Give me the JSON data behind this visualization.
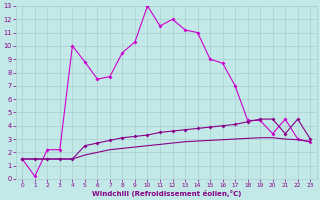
{
  "xlabel": "Windchill (Refroidissement éolien,°C)",
  "xlim": [
    -0.5,
    23.5
  ],
  "ylim": [
    0,
    13
  ],
  "xticks": [
    0,
    1,
    2,
    3,
    4,
    5,
    6,
    7,
    8,
    9,
    10,
    11,
    12,
    13,
    14,
    15,
    16,
    17,
    18,
    19,
    20,
    21,
    22,
    23
  ],
  "yticks": [
    0,
    1,
    2,
    3,
    4,
    5,
    6,
    7,
    8,
    9,
    10,
    11,
    12,
    13
  ],
  "bg_color": "#c2e8e8",
  "grid_color": "#aacccc",
  "line_color1": "#cc00cc",
  "line_color2": "#880088",
  "line1_x": [
    0,
    1,
    2,
    3,
    4,
    5,
    6,
    7,
    8,
    9,
    10,
    11,
    12,
    13,
    14,
    15,
    16,
    17,
    18,
    19,
    20,
    21,
    22,
    23
  ],
  "line1_y": [
    1.5,
    0.2,
    2.2,
    2.2,
    10.0,
    8.8,
    7.5,
    7.7,
    9.5,
    10.3,
    13.0,
    11.5,
    12.0,
    11.2,
    11.0,
    9.0,
    8.7,
    7.0,
    4.4,
    4.4,
    3.4,
    4.5,
    3.0,
    2.8
  ],
  "line2_x": [
    0,
    1,
    2,
    3,
    4,
    5,
    6,
    7,
    8,
    9,
    10,
    11,
    12,
    13,
    14,
    15,
    16,
    17,
    18,
    19,
    20,
    21,
    22,
    23
  ],
  "line2_y": [
    1.5,
    1.5,
    1.5,
    1.5,
    1.5,
    2.5,
    2.7,
    2.9,
    3.1,
    3.2,
    3.3,
    3.5,
    3.6,
    3.7,
    3.8,
    3.9,
    4.0,
    4.1,
    4.3,
    4.5,
    4.5,
    3.4,
    4.5,
    3.0
  ],
  "line3_x": [
    0,
    1,
    2,
    3,
    4,
    5,
    6,
    7,
    8,
    9,
    10,
    11,
    12,
    13,
    14,
    15,
    16,
    17,
    18,
    19,
    20,
    21,
    22,
    23
  ],
  "line3_y": [
    1.5,
    1.5,
    1.5,
    1.5,
    1.5,
    1.8,
    2.0,
    2.2,
    2.3,
    2.4,
    2.5,
    2.6,
    2.7,
    2.8,
    2.85,
    2.9,
    2.95,
    3.0,
    3.05,
    3.1,
    3.1,
    3.0,
    2.95,
    2.8
  ]
}
